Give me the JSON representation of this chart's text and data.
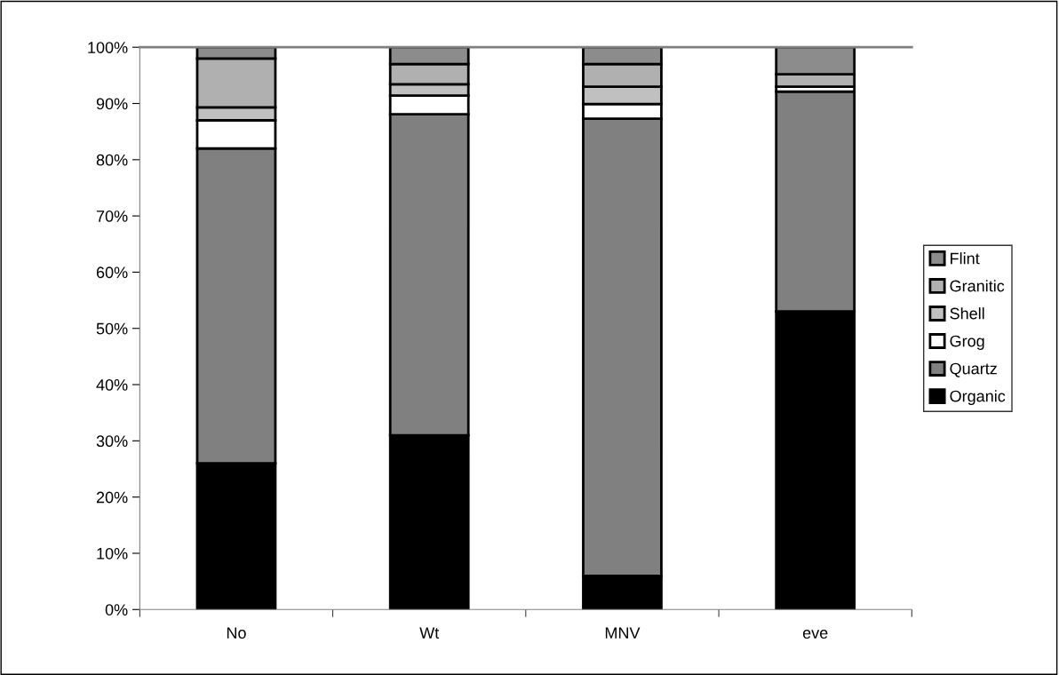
{
  "chart_data": {
    "type": "bar",
    "stacked": true,
    "categories": [
      "No",
      "Wt",
      "MNV",
      "eve"
    ],
    "series": [
      {
        "name": "Organic",
        "color": "#000000",
        "values": [
          26,
          31,
          6,
          53
        ]
      },
      {
        "name": "Quartz",
        "color": "#808080",
        "values": [
          56,
          57.1,
          81.3,
          39.1
        ]
      },
      {
        "name": "Grog",
        "color": "#ffffff",
        "values": [
          5,
          3.3,
          2.6,
          0.9
        ]
      },
      {
        "name": "Shell",
        "color": "#c0c0c0",
        "values": [
          2.3,
          2.0,
          3.1,
          0
        ]
      },
      {
        "name": "Granitic",
        "color": "#b0b0b0",
        "values": [
          8.7,
          3.6,
          4.0,
          2.2
        ]
      },
      {
        "name": "Flint",
        "color": "#8c8c8c",
        "values": [
          2,
          3.0,
          3.0,
          4.8
        ]
      }
    ],
    "ylim": [
      0,
      100
    ],
    "yticks": [
      {
        "value": 0,
        "label": "0%"
      },
      {
        "value": 10,
        "label": "10%"
      },
      {
        "value": 20,
        "label": "20%"
      },
      {
        "value": 30,
        "label": "30%"
      },
      {
        "value": 40,
        "label": "40%"
      },
      {
        "value": 50,
        "label": "50%"
      },
      {
        "value": 60,
        "label": "60%"
      },
      {
        "value": 70,
        "label": "70%"
      },
      {
        "value": 80,
        "label": "80%"
      },
      {
        "value": 90,
        "label": "90%"
      },
      {
        "value": 100,
        "label": "100%"
      }
    ],
    "grid": false,
    "legend": "right"
  }
}
